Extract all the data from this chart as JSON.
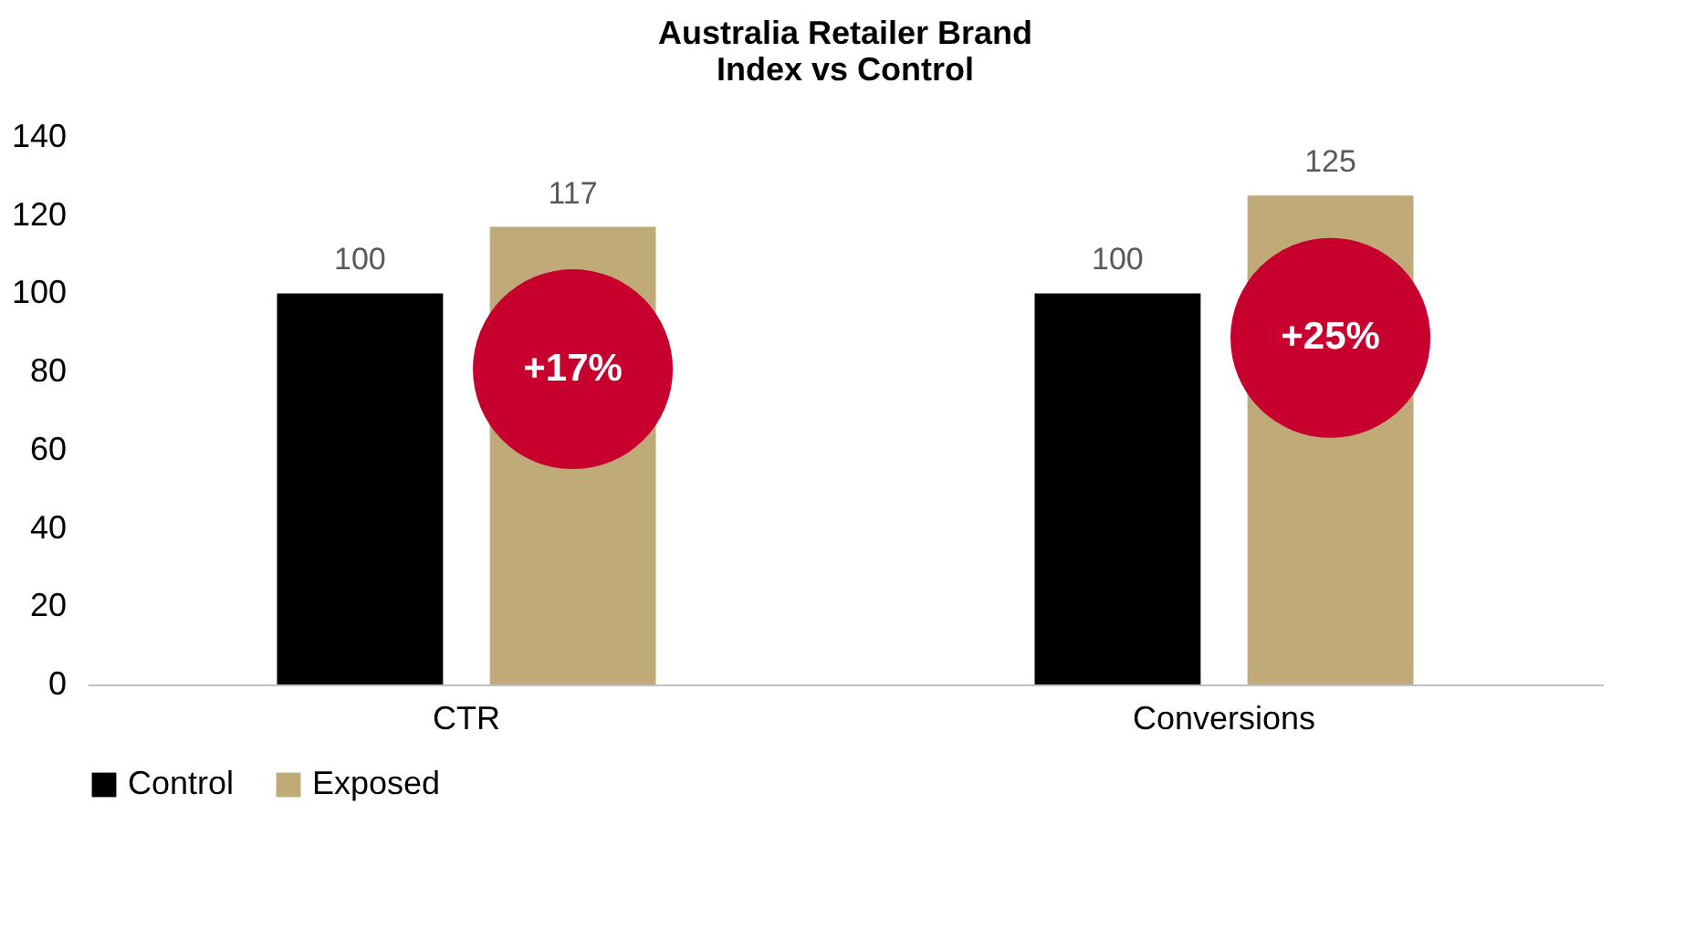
{
  "chart_data": {
    "type": "bar",
    "title": "Australia Retailer Brand\nIndex vs Control",
    "categories": [
      "CTR",
      "Conversions"
    ],
    "series": [
      {
        "name": "Control",
        "color": "#000000",
        "values": [
          100,
          100
        ]
      },
      {
        "name": "Exposed",
        "color": "#c0ab78",
        "values": [
          117,
          125
        ]
      }
    ],
    "ylim": [
      0,
      140
    ],
    "yticks": [
      0,
      20,
      40,
      60,
      80,
      100,
      120,
      140
    ],
    "data_labels": true,
    "legend": "bottom",
    "annotations": [
      "+17%",
      "+25%"
    ]
  }
}
